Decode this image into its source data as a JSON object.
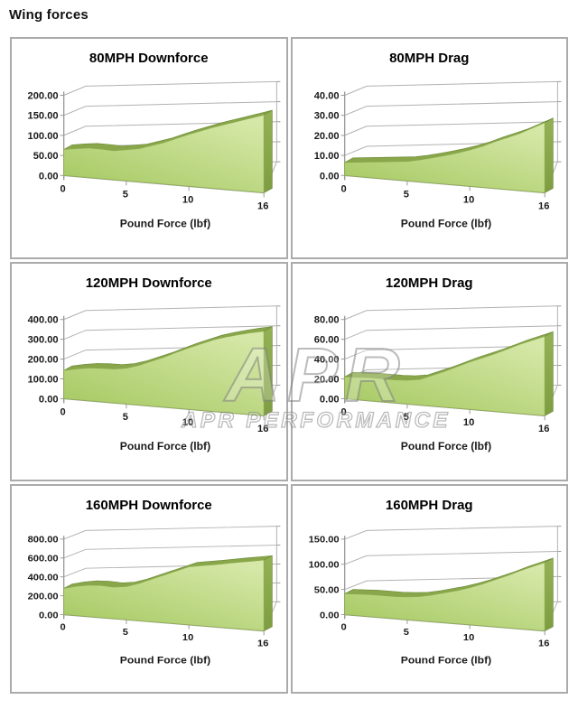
{
  "page": {
    "title": "Wing forces"
  },
  "watermark": {
    "mark": "APR",
    "text": "APR PERFORMANCE"
  },
  "style": {
    "area_fill_light": "#d6e8a8",
    "area_fill_dark": "#a3c75e",
    "area_top_band": "#89a74a",
    "area_side_light": "#93b254",
    "area_side_dark": "#7e9d42",
    "area_edge": "#6f8c3a",
    "gridline": "#b3b2b1",
    "axis": "#999999",
    "text": "#1a1a1a",
    "cell_border": "#ababab"
  },
  "chart_data": [
    {
      "type": "area",
      "title": "80MPH Downforce",
      "xlabel": "Pound Force (lbf)",
      "ylabel": "",
      "x": [
        0,
        1,
        2,
        3,
        4,
        5,
        6,
        7,
        8,
        9,
        10,
        11,
        12,
        13,
        14,
        15,
        16
      ],
      "values": [
        50,
        54,
        57,
        57,
        56,
        60,
        64,
        72,
        80,
        90,
        100,
        109,
        118,
        126,
        134,
        142,
        150
      ],
      "ylim": [
        0,
        200
      ],
      "ytick_labels": [
        "0.00",
        "50.00",
        "100.00",
        "150.00",
        "200.00"
      ],
      "xticks": [
        0,
        5,
        10,
        16
      ],
      "grid": true,
      "legend": "none"
    },
    {
      "type": "area",
      "title": "80MPH Drag",
      "xlabel": "Pound Force (lbf)",
      "ylabel": "",
      "x": [
        0,
        1,
        2,
        3,
        4,
        5,
        6,
        7,
        8,
        9,
        10,
        11,
        12,
        13,
        14,
        15,
        16
      ],
      "values": [
        5,
        5.5,
        6,
        6.5,
        7,
        7.5,
        8.5,
        9.7,
        11,
        12.4,
        14,
        15.8,
        18,
        20,
        22,
        24.5,
        27
      ],
      "ylim": [
        0,
        40
      ],
      "ytick_labels": [
        "0.00",
        "10.00",
        "20.00",
        "30.00",
        "40.00"
      ],
      "xticks": [
        0,
        5,
        10,
        16
      ],
      "grid": true,
      "legend": "none"
    },
    {
      "type": "area",
      "title": "120MPH Downforce",
      "xlabel": "Pound Force (lbf)",
      "ylabel": "",
      "x": [
        0,
        1,
        2,
        3,
        4,
        5,
        6,
        7,
        8,
        9,
        10,
        11,
        12,
        13,
        14,
        15,
        16
      ],
      "values": [
        110,
        120,
        128,
        131,
        132,
        140,
        155,
        175,
        195,
        218,
        240,
        260,
        280,
        295,
        308,
        320,
        330
      ],
      "ylim": [
        0,
        400
      ],
      "ytick_labels": [
        "0.00",
        "100.00",
        "200.00",
        "300.00",
        "400.00"
      ],
      "xticks": [
        0,
        5,
        10,
        16
      ],
      "grid": true,
      "legend": "none"
    },
    {
      "type": "area",
      "title": "120MPH Drag",
      "xlabel": "Pound Force (lbf)",
      "ylabel": "",
      "x": [
        0,
        1,
        2,
        3,
        4,
        5,
        6,
        7,
        8,
        9,
        10,
        11,
        12,
        13,
        14,
        15,
        16
      ],
      "values": [
        17,
        17.5,
        18,
        18,
        18,
        18.5,
        20,
        24,
        28,
        32.5,
        37,
        41,
        45,
        49.5,
        54,
        58,
        62
      ],
      "ylim": [
        0,
        80
      ],
      "ytick_labels": [
        "0.00",
        "20.00",
        "40.00",
        "60.00",
        "80.00"
      ],
      "xticks": [
        0,
        5,
        10,
        16
      ],
      "grid": true,
      "legend": "none"
    },
    {
      "type": "area",
      "title": "160MPH Downforce",
      "xlabel": "Pound Force (lbf)",
      "ylabel": "",
      "x": [
        0,
        1,
        2,
        3,
        4,
        5,
        6,
        7,
        8,
        9,
        10,
        11,
        12,
        13,
        14,
        15,
        16
      ],
      "values": [
        215,
        240,
        258,
        263,
        258,
        272,
        305,
        348,
        390,
        432,
        475,
        492,
        508,
        527,
        545,
        562,
        580
      ],
      "ylim": [
        0,
        800
      ],
      "ytick_labels": [
        "0.00",
        "200.00",
        "400.00",
        "600.00",
        "800.00"
      ],
      "xticks": [
        0,
        5,
        10,
        16
      ],
      "grid": true,
      "legend": "none"
    },
    {
      "type": "area",
      "title": "160MPH Drag",
      "xlabel": "Pound Force (lbf)",
      "ylabel": "",
      "x": [
        0,
        1,
        2,
        3,
        4,
        5,
        6,
        7,
        8,
        9,
        10,
        11,
        12,
        13,
        14,
        15,
        16
      ],
      "values": [
        32,
        33,
        34,
        34,
        34,
        35,
        37,
        41,
        46,
        51,
        57,
        64,
        72,
        80,
        89,
        97,
        105
      ],
      "ylim": [
        0,
        150
      ],
      "ytick_labels": [
        "0.00",
        "50.00",
        "100.00",
        "150.00"
      ],
      "xticks": [
        0,
        5,
        10,
        16
      ],
      "grid": true,
      "legend": "none"
    }
  ]
}
